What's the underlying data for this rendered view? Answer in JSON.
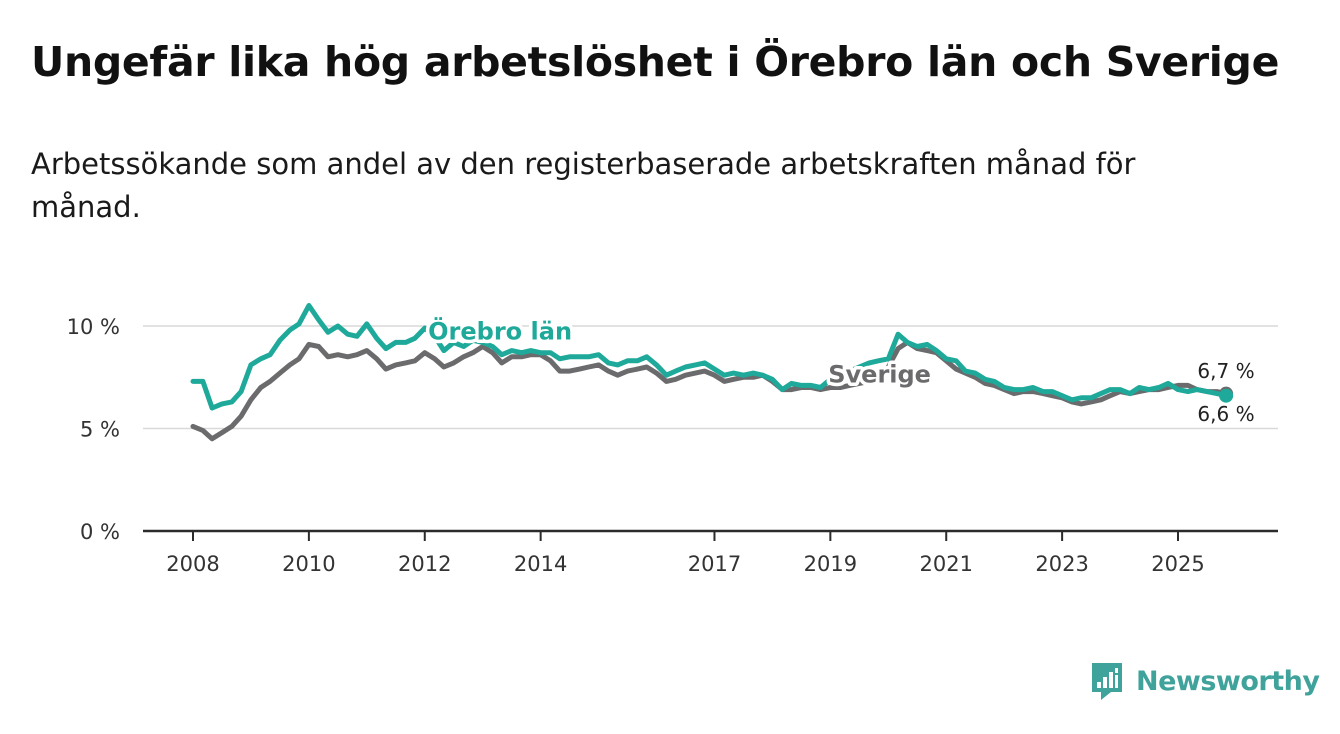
{
  "title": "Ungefär lika hög arbetslöshet i Örebro län och Sverige",
  "subtitle": "Arbetssökande som andel av den registerbaserade arbetskraften månad för månad.",
  "brand": {
    "name": "Newsworthy",
    "icon": "newsworthy-logo-icon",
    "color": "#3fa39c"
  },
  "chart_data": {
    "type": "line",
    "title": "Ungefär lika hög arbetslöshet i Örebro län och Sverige",
    "xlabel": "",
    "ylabel": "",
    "xlim": [
      2007.5,
      2026.75
    ],
    "ylim": [
      0,
      10
    ],
    "grid": true,
    "yticks": [
      {
        "value": 0,
        "label": "0 %"
      },
      {
        "value": 5,
        "label": "5 %"
      },
      {
        "value": 10,
        "label": "10 %"
      }
    ],
    "xticks": [
      {
        "value": 2008,
        "label": "2008"
      },
      {
        "value": 2010,
        "label": "2010"
      },
      {
        "value": 2012,
        "label": "2012"
      },
      {
        "value": 2014,
        "label": "2014"
      },
      {
        "value": 2017,
        "label": "2017"
      },
      {
        "value": 2019,
        "label": "2019"
      },
      {
        "value": 2021,
        "label": "2021"
      },
      {
        "value": 2023,
        "label": "2023"
      },
      {
        "value": 2025,
        "label": "2025"
      }
    ],
    "series": [
      {
        "name": "Sverige",
        "label": "Sverige",
        "color": "#6b6b6d",
        "end_label": "6,7 %",
        "x": [
          2008.0,
          2008.17,
          2008.33,
          2008.5,
          2008.67,
          2008.83,
          2009.0,
          2009.17,
          2009.33,
          2009.5,
          2009.67,
          2009.83,
          2010.0,
          2010.17,
          2010.33,
          2010.5,
          2010.67,
          2010.83,
          2011.0,
          2011.17,
          2011.33,
          2011.5,
          2011.67,
          2011.83,
          2012.0,
          2012.17,
          2012.33,
          2012.5,
          2012.67,
          2012.83,
          2013.0,
          2013.17,
          2013.33,
          2013.5,
          2013.67,
          2013.83,
          2014.0,
          2014.17,
          2014.33,
          2014.5,
          2014.67,
          2014.83,
          2015.0,
          2015.17,
          2015.33,
          2015.5,
          2015.67,
          2015.83,
          2016.0,
          2016.17,
          2016.33,
          2016.5,
          2016.67,
          2016.83,
          2017.0,
          2017.17,
          2017.33,
          2017.5,
          2017.67,
          2017.83,
          2018.0,
          2018.17,
          2018.33,
          2018.5,
          2018.67,
          2018.83,
          2019.0,
          2019.17,
          2019.33,
          2019.5,
          2019.67,
          2019.83,
          2020.0,
          2020.17,
          2020.33,
          2020.5,
          2020.67,
          2020.83,
          2021.0,
          2021.17,
          2021.33,
          2021.5,
          2021.67,
          2021.83,
          2022.0,
          2022.17,
          2022.33,
          2022.5,
          2022.67,
          2022.83,
          2023.0,
          2023.17,
          2023.33,
          2023.5,
          2023.67,
          2023.83,
          2024.0,
          2024.17,
          2024.33,
          2024.5,
          2024.67,
          2024.83,
          2025.0,
          2025.17,
          2025.33,
          2025.5,
          2025.67,
          2025.83
        ],
        "values": [
          5.1,
          4.9,
          4.5,
          4.8,
          5.1,
          5.6,
          6.4,
          7.0,
          7.3,
          7.7,
          8.1,
          8.4,
          9.1,
          9.0,
          8.5,
          8.6,
          8.5,
          8.6,
          8.8,
          8.4,
          7.9,
          8.1,
          8.2,
          8.3,
          8.7,
          8.4,
          8.0,
          8.2,
          8.5,
          8.7,
          9.0,
          8.7,
          8.2,
          8.5,
          8.5,
          8.6,
          8.6,
          8.3,
          7.8,
          7.8,
          7.9,
          8.0,
          8.1,
          7.8,
          7.6,
          7.8,
          7.9,
          8.0,
          7.7,
          7.3,
          7.4,
          7.6,
          7.7,
          7.8,
          7.6,
          7.3,
          7.4,
          7.5,
          7.5,
          7.6,
          7.3,
          6.9,
          6.9,
          7.0,
          7.0,
          6.9,
          7.0,
          7.0,
          7.1,
          7.2,
          7.3,
          7.5,
          8.0,
          8.9,
          9.2,
          8.9,
          8.8,
          8.7,
          8.3,
          7.9,
          7.7,
          7.5,
          7.2,
          7.1,
          6.9,
          6.7,
          6.8,
          6.8,
          6.7,
          6.6,
          6.5,
          6.3,
          6.2,
          6.3,
          6.4,
          6.6,
          6.8,
          6.7,
          6.8,
          6.9,
          6.9,
          7.0,
          7.1,
          7.1,
          6.9,
          6.8,
          6.8,
          6.7
        ]
      },
      {
        "name": "Örebro län",
        "label": "Örebro län",
        "color": "#1ea99a",
        "end_label": "6,6 %",
        "x": [
          2008.0,
          2008.17,
          2008.33,
          2008.5,
          2008.67,
          2008.83,
          2009.0,
          2009.17,
          2009.33,
          2009.5,
          2009.67,
          2009.83,
          2010.0,
          2010.17,
          2010.33,
          2010.5,
          2010.67,
          2010.83,
          2011.0,
          2011.17,
          2011.33,
          2011.5,
          2011.67,
          2011.83,
          2012.0,
          2012.17,
          2012.33,
          2012.5,
          2012.67,
          2012.83,
          2013.0,
          2013.17,
          2013.33,
          2013.5,
          2013.67,
          2013.83,
          2014.0,
          2014.17,
          2014.33,
          2014.5,
          2014.67,
          2014.83,
          2015.0,
          2015.17,
          2015.33,
          2015.5,
          2015.67,
          2015.83,
          2016.0,
          2016.17,
          2016.33,
          2016.5,
          2016.67,
          2016.83,
          2017.0,
          2017.17,
          2017.33,
          2017.5,
          2017.67,
          2017.83,
          2018.0,
          2018.17,
          2018.33,
          2018.5,
          2018.67,
          2018.83,
          2019.0,
          2019.17,
          2019.33,
          2019.5,
          2019.67,
          2019.83,
          2020.0,
          2020.17,
          2020.33,
          2020.5,
          2020.67,
          2020.83,
          2021.0,
          2021.17,
          2021.33,
          2021.5,
          2021.67,
          2021.83,
          2022.0,
          2022.17,
          2022.33,
          2022.5,
          2022.67,
          2022.83,
          2023.0,
          2023.17,
          2023.33,
          2023.5,
          2023.67,
          2023.83,
          2024.0,
          2024.17,
          2024.33,
          2024.5,
          2024.67,
          2024.83,
          2025.0,
          2025.17,
          2025.33,
          2025.5,
          2025.67,
          2025.83
        ],
        "values": [
          7.3,
          7.3,
          6.0,
          6.2,
          6.3,
          6.8,
          8.1,
          8.4,
          8.6,
          9.3,
          9.8,
          10.1,
          11.0,
          10.3,
          9.7,
          10.0,
          9.6,
          9.5,
          10.1,
          9.4,
          8.9,
          9.2,
          9.2,
          9.4,
          9.9,
          9.5,
          8.8,
          9.2,
          9.0,
          9.3,
          9.2,
          9.0,
          8.6,
          8.8,
          8.7,
          8.8,
          8.7,
          8.7,
          8.4,
          8.5,
          8.5,
          8.5,
          8.6,
          8.2,
          8.1,
          8.3,
          8.3,
          8.5,
          8.1,
          7.6,
          7.8,
          8.0,
          8.1,
          8.2,
          7.9,
          7.6,
          7.7,
          7.6,
          7.7,
          7.6,
          7.4,
          6.9,
          7.2,
          7.1,
          7.1,
          7.0,
          7.4,
          7.6,
          7.8,
          8.0,
          8.2,
          8.3,
          8.4,
          9.6,
          9.2,
          9.0,
          9.1,
          8.8,
          8.4,
          8.3,
          7.8,
          7.7,
          7.4,
          7.3,
          7.0,
          6.9,
          6.9,
          7.0,
          6.8,
          6.8,
          6.6,
          6.4,
          6.5,
          6.5,
          6.7,
          6.9,
          6.9,
          6.7,
          7.0,
          6.9,
          7.0,
          7.2,
          6.9,
          6.8,
          6.9,
          6.8,
          6.7,
          6.6
        ]
      }
    ]
  }
}
